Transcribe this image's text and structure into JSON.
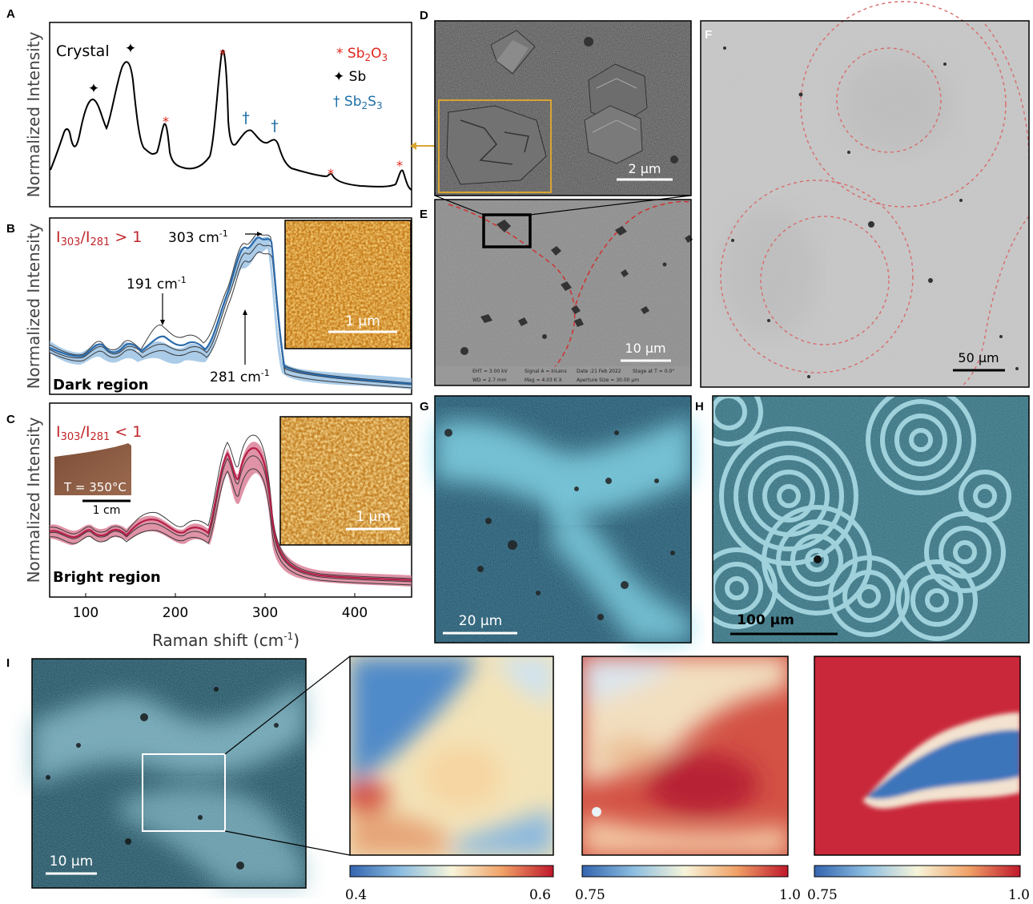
{
  "panel_letters": {
    "a": "A",
    "b": "B",
    "c": "C",
    "d": "D",
    "e": "E",
    "f": "F",
    "g": "G",
    "h": "H",
    "i": "I"
  },
  "raman": {
    "ylabel": "Normalized Intensity",
    "xlabel": "Raman shift (cm",
    "xlabel_sup": "-1",
    "xlabel_end": ")",
    "x_ticks": [
      "100",
      "200",
      "300",
      "400"
    ],
    "xlim": [
      60,
      460
    ]
  },
  "panel_a": {
    "title": "Crystal",
    "legend": [
      {
        "sym": "*",
        "text": "Sb",
        "sub1": "2",
        "mid": "O",
        "sub2": "3",
        "color": "#e0261b"
      },
      {
        "sym": "✦",
        "text": "Sb",
        "color": "#000000"
      },
      {
        "sym": "†",
        "text": "Sb",
        "sub1": "2",
        "mid": "S",
        "sub2": "3",
        "color": "#1e6fa5"
      }
    ]
  },
  "panel_b": {
    "ratio": "I303/I281 > 1",
    "ratio_parts": {
      "i1": "I",
      "s1": "303",
      "slash": "/I",
      "s2": "281",
      "rel": " > 1"
    },
    "annot_303": "303 cm",
    "annot_191": "191 cm",
    "annot_281": "281 cm",
    "sup": "-1",
    "region": "Dark region",
    "scalebar": "1 µm",
    "color": "#2b6aaa"
  },
  "panel_c": {
    "ratio_parts": {
      "i1": "I",
      "s1": "303",
      "slash": "/I",
      "s2": "281",
      "rel": " < 1"
    },
    "temp": "T = 350°C",
    "cm_bar": "1 cm",
    "region": "Bright region",
    "scalebar": "1 µm",
    "color": "#b51f47"
  },
  "panel_d": {
    "scalebar": "2 µm"
  },
  "panel_e": {
    "scalebar": "10 µm",
    "meta": [
      "EHT = 3.00 kV",
      "WD = 2.7 mm",
      "Signal A = InLens",
      "Mag = 4.03 K X",
      "Date :21 Feb 2022",
      "Aperture Size = 30.00 µm",
      "Stage at T = 0.0°"
    ]
  },
  "panel_f": {
    "scalebar": "50 µm"
  },
  "panel_g": {
    "scalebar": "20 µm"
  },
  "panel_h": {
    "scalebar": "100 µm"
  },
  "panel_i": {
    "scalebar": "10 µm",
    "colorbars": [
      {
        "min": "0.4",
        "max": "0.6"
      },
      {
        "min": "0.75",
        "max": "1.0"
      },
      {
        "min": "0.75",
        "max": "1.0"
      }
    ]
  },
  "colors": {
    "sb2o3": "#e0261b",
    "sb": "#000000",
    "sb2s3": "#1e6fa5",
    "ratio": "#c0262c",
    "gold": "#d9a533"
  }
}
